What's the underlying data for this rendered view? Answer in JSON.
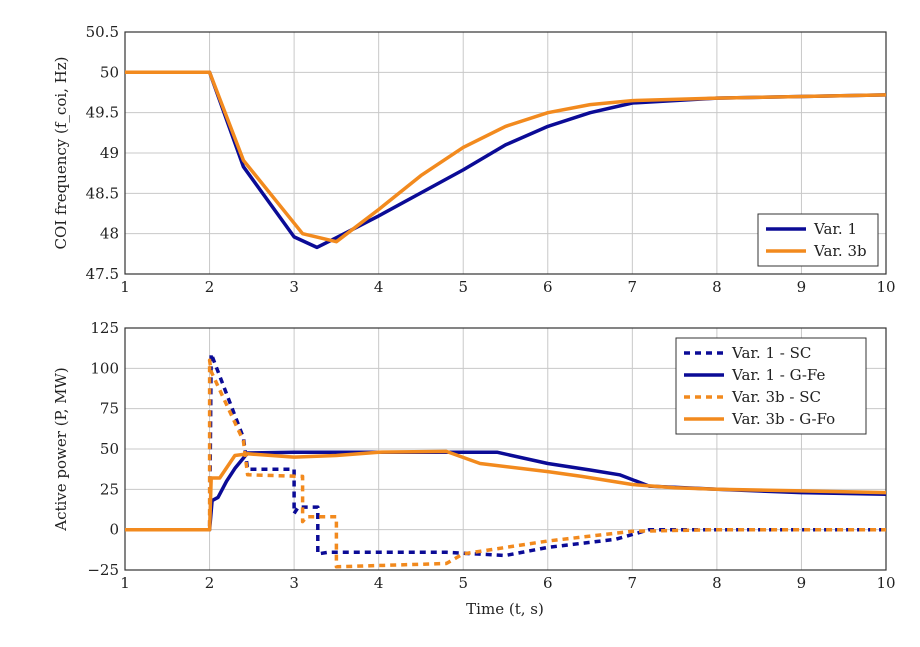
{
  "colors": {
    "var1": "#0b0b96",
    "var3b": "#f28a1e"
  },
  "chart_data": [
    {
      "type": "line",
      "ylabel": "COI frequency (f_coi, Hz)",
      "xlim": [
        1,
        10
      ],
      "ylim": [
        47.5,
        50.5
      ],
      "xticks": [
        "1",
        "2",
        "3",
        "4",
        "5",
        "6",
        "7",
        "8",
        "9",
        "10"
      ],
      "yticks": [
        "47.5",
        "48",
        "48.5",
        "49",
        "49.5",
        "50",
        "50.5"
      ],
      "grid": true,
      "legend": "bottom-right",
      "series": [
        {
          "name": "Var. 1",
          "color": "var1",
          "dash": false,
          "x": [
            1,
            2,
            2.4,
            3,
            3.27,
            3.5,
            4,
            5,
            5.5,
            6,
            6.5,
            7,
            8,
            9,
            10
          ],
          "y": [
            50,
            50,
            48.83,
            47.96,
            47.83,
            47.95,
            48.22,
            48.79,
            49.1,
            49.33,
            49.5,
            49.62,
            49.68,
            49.7,
            49.72
          ]
        },
        {
          "name": "Var. 3b",
          "color": "var3b",
          "dash": false,
          "x": [
            1,
            2,
            2.4,
            3.1,
            3.5,
            4,
            4.5,
            5,
            5.5,
            6,
            6.5,
            7,
            8,
            9,
            10
          ],
          "y": [
            50,
            50,
            48.91,
            48.0,
            47.9,
            48.3,
            48.72,
            49.07,
            49.33,
            49.5,
            49.6,
            49.65,
            49.68,
            49.7,
            49.72
          ]
        }
      ]
    },
    {
      "type": "line",
      "xlabel": "Time (t, s)",
      "ylabel": "Active power (P, MW)",
      "xlim": [
        1,
        10
      ],
      "ylim": [
        -25,
        125
      ],
      "xticks": [
        "1",
        "2",
        "3",
        "4",
        "5",
        "6",
        "7",
        "8",
        "9",
        "10"
      ],
      "yticks": [
        "−25",
        "0",
        "25",
        "50",
        "75",
        "100",
        "125"
      ],
      "grid": true,
      "legend": "top-right",
      "series": [
        {
          "name": "Var. 1 - SC",
          "color": "var1",
          "dash": true,
          "x": [
            1,
            2,
            2.02,
            2.4,
            2.45,
            3.0,
            3.0,
            3.05,
            3.28,
            3.28,
            3.4,
            4.8,
            5.5,
            6,
            6.8,
            7.2,
            8,
            10
          ],
          "y": [
            0,
            0,
            109,
            57,
            37.5,
            37.5,
            10,
            14,
            14,
            -15,
            -14,
            -14,
            -16,
            -11,
            -6,
            0,
            0,
            0
          ]
        },
        {
          "name": "Var. 1 - G-Fe",
          "color": "var1",
          "dash": false,
          "x": [
            1,
            2,
            2.03,
            2.1,
            2.2,
            2.3,
            2.45,
            3,
            3.3,
            3.5,
            5.4,
            6,
            6.5,
            6.85,
            7.2,
            8,
            9,
            10
          ],
          "y": [
            0,
            0,
            18,
            20,
            30,
            38,
            47.5,
            48,
            48,
            48,
            48,
            41,
            37,
            34,
            27,
            25,
            23,
            22
          ]
        },
        {
          "name": "Var. 3b - SC",
          "color": "var3b",
          "dash": true,
          "x": [
            1,
            2,
            2.0,
            2.02,
            2.4,
            2.45,
            3.1,
            3.1,
            3.15,
            3.5,
            3.5,
            4.8,
            5,
            6,
            7,
            8,
            10
          ],
          "y": [
            0,
            0,
            105,
            98,
            55,
            34,
            33,
            5,
            8,
            8,
            -23,
            -21,
            -15,
            -7,
            -1,
            0,
            0
          ]
        },
        {
          "name": "Var. 3b - G-Fo",
          "color": "var3b",
          "dash": false,
          "x": [
            1,
            2,
            2.02,
            2.12,
            2.3,
            2.45,
            3,
            3.5,
            4,
            4.8,
            5.2,
            6,
            6.4,
            7,
            7.5,
            8,
            9,
            10
          ],
          "y": [
            0,
            0,
            32,
            32,
            46,
            47,
            45,
            46,
            48,
            48.5,
            41,
            36,
            33,
            28,
            26,
            25,
            24,
            23
          ]
        }
      ]
    }
  ]
}
